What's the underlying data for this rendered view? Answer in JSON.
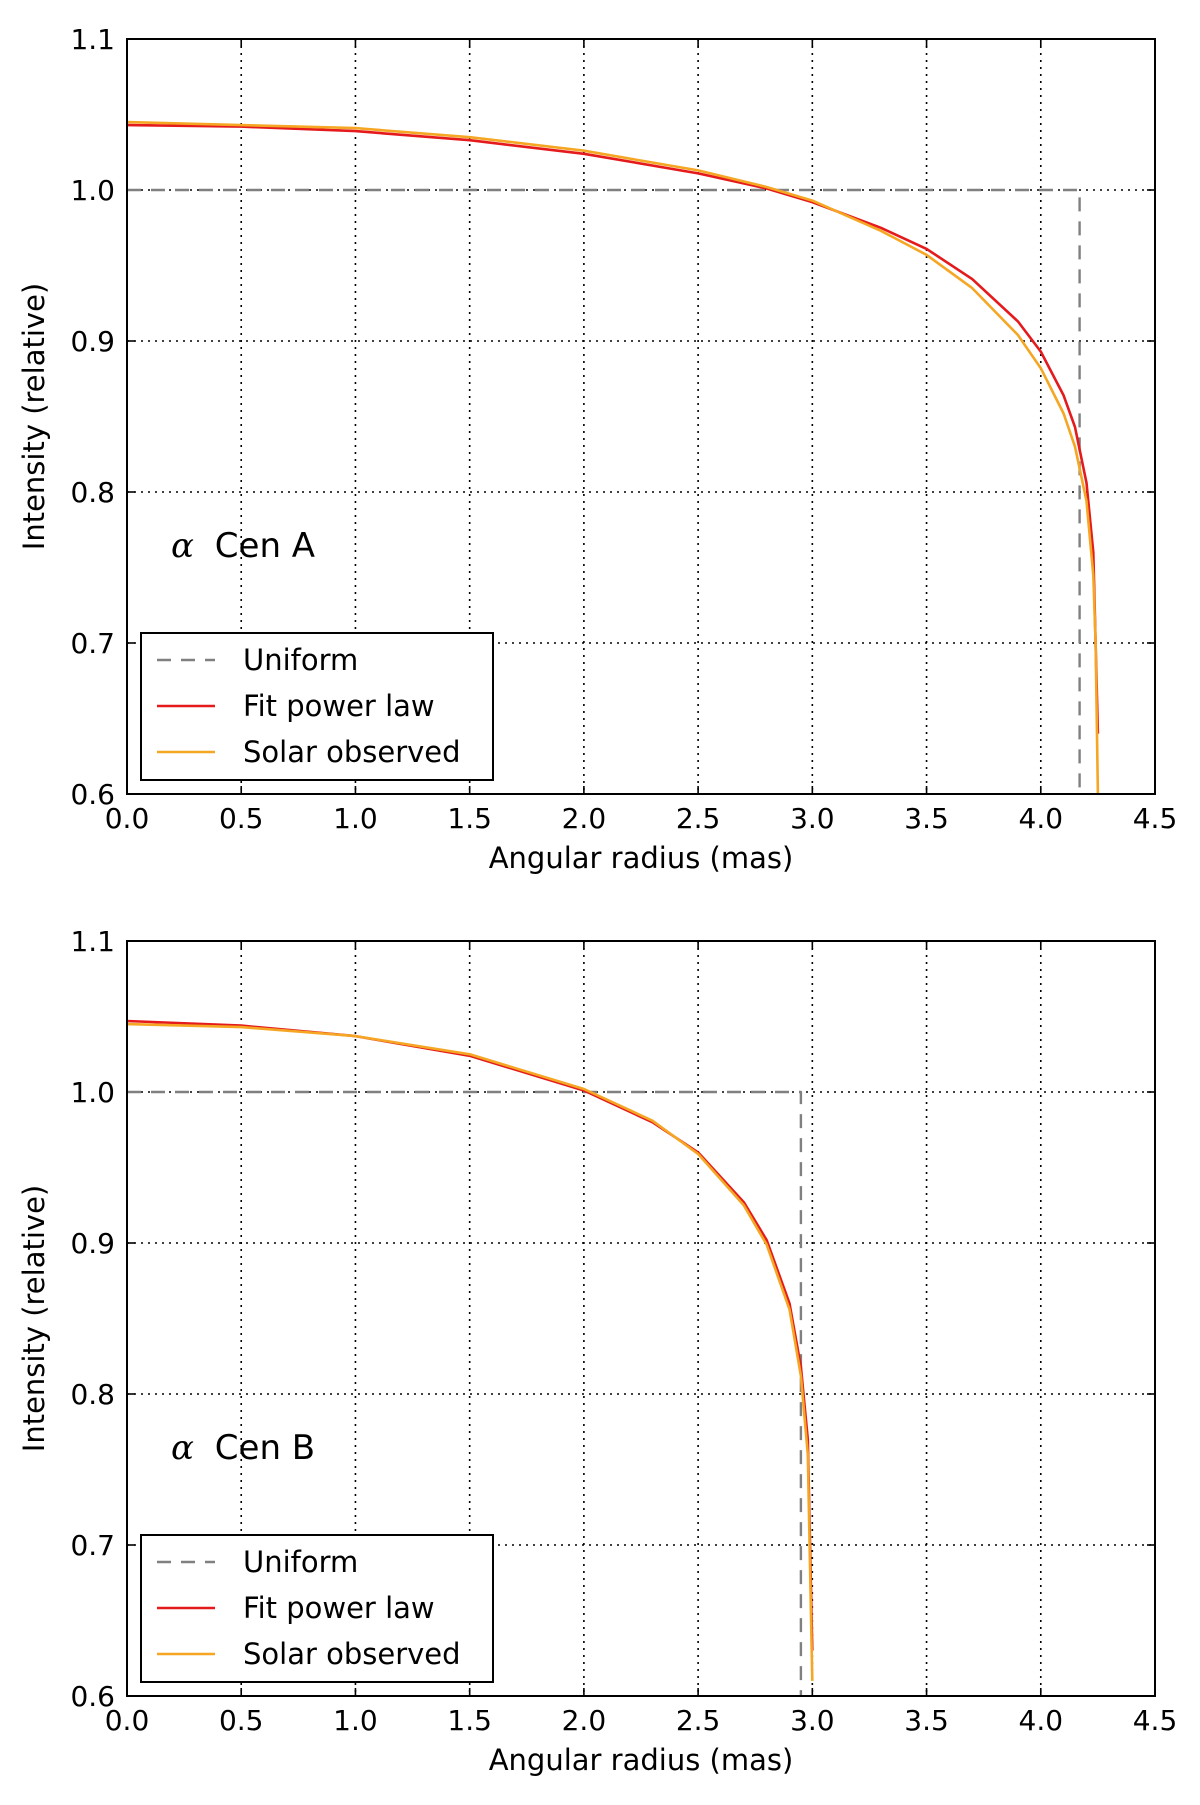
{
  "colors": {
    "uniform": "#808080",
    "fit_power_law": "#e41a1c",
    "solar_observed": "#f5a623"
  },
  "chart_data": [
    {
      "type": "line",
      "name": "panel-a",
      "annotation": {
        "symbol": "α",
        "text": "Cen A"
      },
      "xlabel": "Angular radius (mas)",
      "ylabel": "Intensity (relative)",
      "xlim": [
        0.0,
        4.5
      ],
      "ylim": [
        0.6,
        1.1
      ],
      "xticks": [
        "0.0",
        "0.5",
        "1.0",
        "1.5",
        "2.0",
        "2.5",
        "3.0",
        "3.5",
        "4.0",
        "4.5"
      ],
      "yticks": [
        "0.6",
        "0.7",
        "0.8",
        "0.9",
        "1.0",
        "1.1"
      ],
      "grid": true,
      "legend_position": "lower-left",
      "series": [
        {
          "name": "Uniform",
          "style": "dashed",
          "x": [
            0.0,
            4.17,
            4.17
          ],
          "y": [
            1.0,
            1.0,
            0.6
          ]
        },
        {
          "name": "Fit power law",
          "style": "solid",
          "x": [
            0.0,
            0.5,
            1.0,
            1.5,
            2.0,
            2.5,
            2.8,
            3.0,
            3.3,
            3.5,
            3.7,
            3.9,
            4.0,
            4.1,
            4.15,
            4.2,
            4.23,
            4.25
          ],
          "y": [
            1.043,
            1.042,
            1.039,
            1.033,
            1.024,
            1.011,
            1.001,
            0.992,
            0.975,
            0.961,
            0.941,
            0.913,
            0.893,
            0.864,
            0.843,
            0.806,
            0.76,
            0.64
          ]
        },
        {
          "name": "Solar observed",
          "style": "solid",
          "x": [
            0.0,
            0.5,
            1.0,
            1.5,
            2.0,
            2.5,
            2.8,
            3.0,
            3.3,
            3.5,
            3.7,
            3.9,
            4.0,
            4.1,
            4.15,
            4.2,
            4.23,
            4.24,
            4.25
          ],
          "y": [
            1.045,
            1.043,
            1.041,
            1.035,
            1.026,
            1.013,
            1.002,
            0.993,
            0.973,
            0.957,
            0.935,
            0.904,
            0.882,
            0.852,
            0.83,
            0.794,
            0.745,
            0.7,
            0.6
          ]
        }
      ]
    },
    {
      "type": "line",
      "name": "panel-b",
      "annotation": {
        "symbol": "α",
        "text": "Cen B"
      },
      "xlabel": "Angular radius (mas)",
      "ylabel": "Intensity (relative)",
      "xlim": [
        0.0,
        4.5
      ],
      "ylim": [
        0.6,
        1.1
      ],
      "xticks": [
        "0.0",
        "0.5",
        "1.0",
        "1.5",
        "2.0",
        "2.5",
        "3.0",
        "3.5",
        "4.0",
        "4.5"
      ],
      "yticks": [
        "0.6",
        "0.7",
        "0.8",
        "0.9",
        "1.0",
        "1.1"
      ],
      "grid": true,
      "legend_position": "lower-left",
      "series": [
        {
          "name": "Uniform",
          "style": "dashed",
          "x": [
            0.0,
            2.95,
            2.95
          ],
          "y": [
            1.0,
            1.0,
            0.6
          ]
        },
        {
          "name": "Fit power law",
          "style": "solid",
          "x": [
            0.0,
            0.5,
            1.0,
            1.5,
            2.0,
            2.3,
            2.5,
            2.7,
            2.8,
            2.9,
            2.95,
            2.98,
            3.0
          ],
          "y": [
            1.047,
            1.044,
            1.037,
            1.024,
            1.001,
            0.98,
            0.96,
            0.927,
            0.902,
            0.86,
            0.818,
            0.77,
            0.63
          ]
        },
        {
          "name": "Solar observed",
          "style": "solid",
          "x": [
            0.0,
            0.5,
            1.0,
            1.5,
            2.0,
            2.3,
            2.5,
            2.7,
            2.8,
            2.9,
            2.95,
            2.98,
            3.0
          ],
          "y": [
            1.045,
            1.043,
            1.037,
            1.025,
            1.002,
            0.981,
            0.959,
            0.925,
            0.899,
            0.856,
            0.812,
            0.76,
            0.61
          ]
        }
      ]
    }
  ]
}
